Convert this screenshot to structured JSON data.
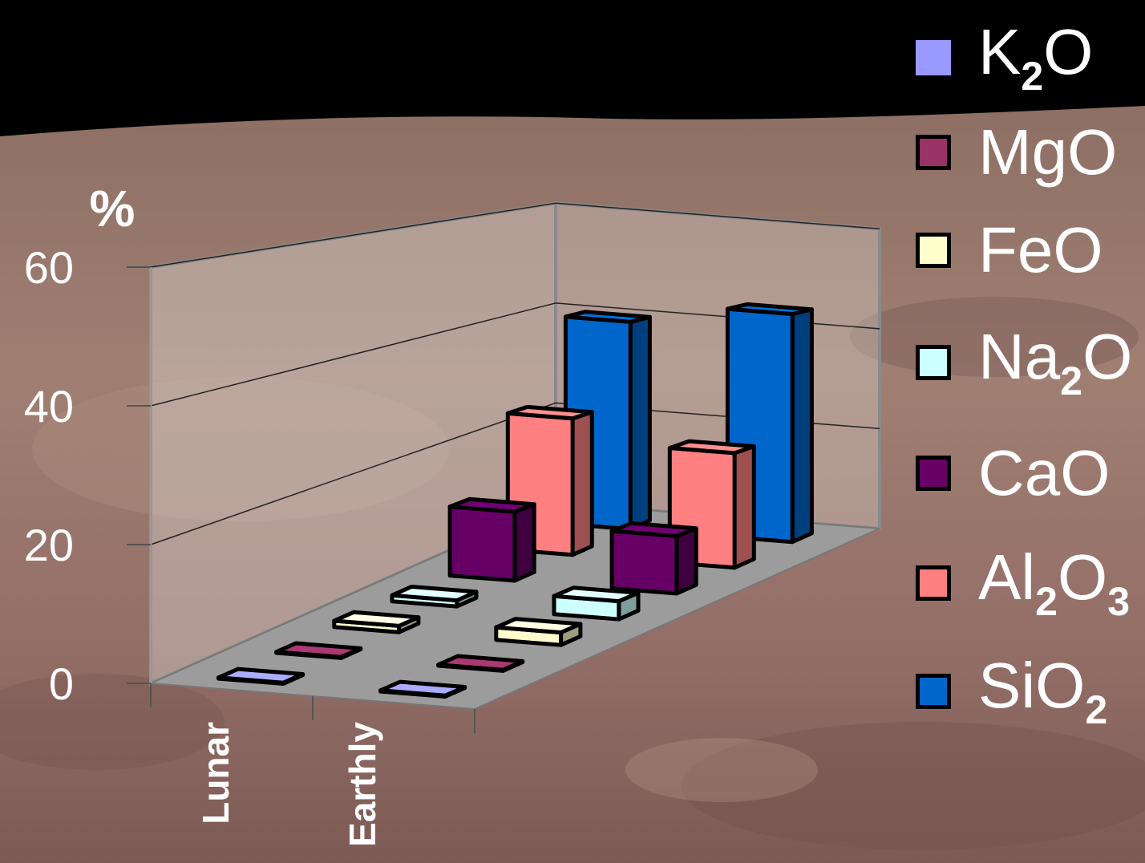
{
  "chart_data": {
    "type": "bar3d",
    "ylabel": "%",
    "ylim": [
      0,
      60
    ],
    "yticks": [
      "0",
      "20",
      "40",
      "60"
    ],
    "categories": [
      "Lunar",
      "Earthly"
    ],
    "series": [
      {
        "name": "K2O",
        "label_parts": [
          "K",
          "2",
          "O"
        ],
        "color": "#9999FF",
        "values": [
          0.1,
          0.1
        ]
      },
      {
        "name": "MgO",
        "label_parts": [
          "MgO"
        ],
        "color": "#993366",
        "values": [
          0.1,
          0.1
        ]
      },
      {
        "name": "FeO",
        "label_parts": [
          "FeO"
        ],
        "color": "#FFFFCC",
        "values": [
          1,
          2
        ]
      },
      {
        "name": "Na2O",
        "label_parts": [
          "Na",
          "2",
          "O"
        ],
        "color": "#CCFFFF",
        "values": [
          1,
          3
        ]
      },
      {
        "name": "CaO",
        "label_parts": [
          "CaO"
        ],
        "color": "#660066",
        "values": [
          12,
          10
        ]
      },
      {
        "name": "Al2O3",
        "label_parts": [
          "Al",
          "2",
          "O",
          "3"
        ],
        "color": "#FF8080",
        "values": [
          25,
          21
        ]
      },
      {
        "name": "SiO2",
        "label_parts": [
          "SiO",
          "2"
        ],
        "color": "#0066CC",
        "values": [
          40,
          44
        ]
      }
    ],
    "legend": "right",
    "grid": true
  }
}
